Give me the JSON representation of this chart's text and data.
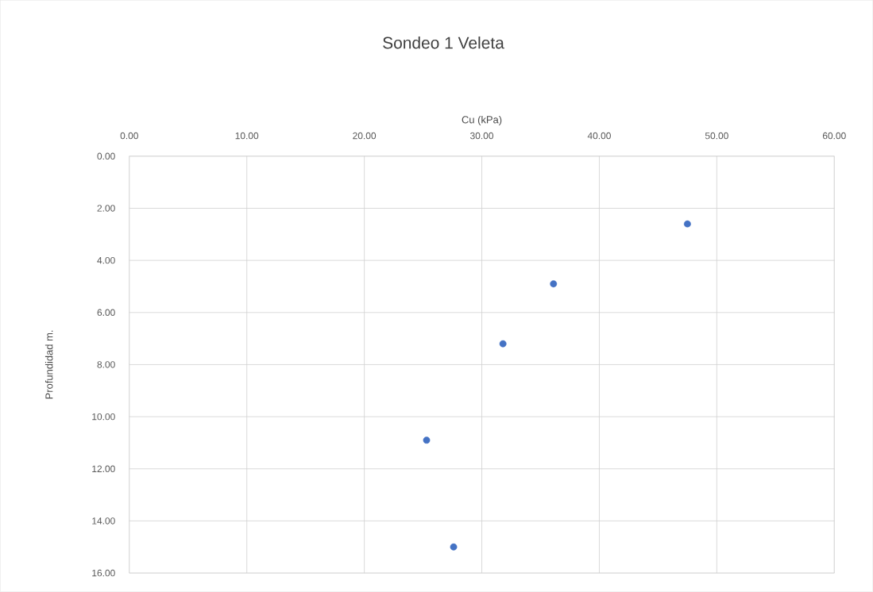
{
  "chart_data": {
    "type": "scatter",
    "title": "Sondeo 1 Veleta",
    "xlabel": "Cu (kPa)",
    "ylabel": "Profundidad m.",
    "x": [
      47.5,
      36.1,
      31.8,
      25.3,
      27.6
    ],
    "series": [
      {
        "color": "#4472c4",
        "values": [
          2.6,
          4.9,
          7.2,
          10.9,
          15.0
        ]
      }
    ],
    "xlim": [
      0,
      60
    ],
    "ylim": [
      16,
      0
    ],
    "xticks": [
      {
        "value": 0,
        "label": "0.00"
      },
      {
        "value": 10,
        "label": "10.00"
      },
      {
        "value": 20,
        "label": "20.00"
      },
      {
        "value": 30,
        "label": "30.00"
      },
      {
        "value": 40,
        "label": "40.00"
      },
      {
        "value": 50,
        "label": "50.00"
      },
      {
        "value": 60,
        "label": "60.00"
      }
    ],
    "yticks": [
      {
        "value": 0,
        "label": "0.00"
      },
      {
        "value": 2,
        "label": "2.00"
      },
      {
        "value": 4,
        "label": "4.00"
      },
      {
        "value": 6,
        "label": "6.00"
      },
      {
        "value": 8,
        "label": "8.00"
      },
      {
        "value": 10,
        "label": "10.00"
      },
      {
        "value": 12,
        "label": "12.00"
      },
      {
        "value": 14,
        "label": "14.00"
      },
      {
        "value": 16,
        "label": "16.00"
      }
    ],
    "grid": true,
    "marker": "circle",
    "legend": false
  }
}
